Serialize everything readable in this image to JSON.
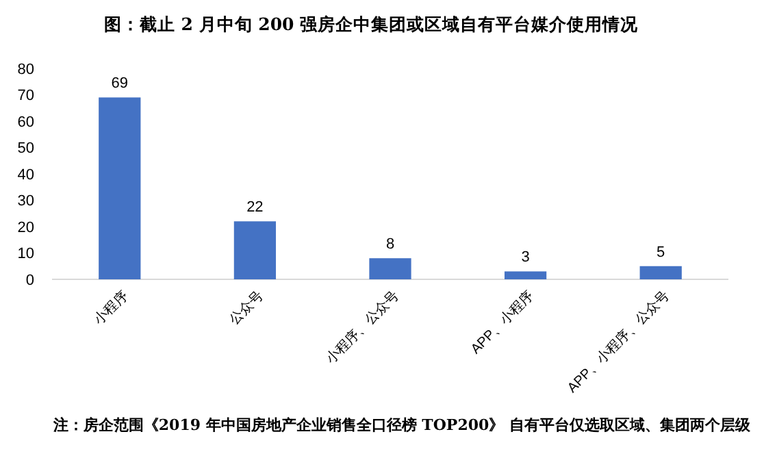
{
  "chart_data": {
    "type": "bar",
    "title": "图：截止 2 月中旬 200 强房企中集团或区域自有平台媒介使用情况",
    "categories": [
      "小程序",
      "公众号",
      "小程序、公众号",
      "APP、小程序",
      "APP、小程序、公众号"
    ],
    "values": [
      69,
      22,
      8,
      3,
      5
    ],
    "color": "#4472c4",
    "data_labels": true,
    "ylim": [
      0,
      80
    ],
    "yticks": [
      0,
      10,
      20,
      30,
      40,
      50,
      60,
      70,
      80
    ],
    "grid": false,
    "annotations": [
      "注：房企范围《2019 年中国房地产企业销售全口径榜 TOP200》 自有平台仅选取区域、集团两个层级"
    ]
  }
}
